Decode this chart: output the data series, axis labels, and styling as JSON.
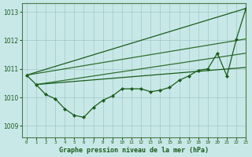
{
  "title": "Graphe pression niveau de la mer (hPa)",
  "background_color": "#c8e8e8",
  "grid_color": "#a0c8c8",
  "line_color_dark": "#1a5c1a",
  "line_color_med": "#2e6e2e",
  "xlim": [
    -0.5,
    23
  ],
  "ylim": [
    1008.6,
    1013.3
  ],
  "yticks": [
    1009,
    1010,
    1011,
    1012,
    1013
  ],
  "xtick_labels": [
    "0",
    "1",
    "2",
    "3",
    "4",
    "5",
    "6",
    "7",
    "8",
    "9",
    "10",
    "11",
    "12",
    "13",
    "14",
    "15",
    "16",
    "17",
    "18",
    "19",
    "20",
    "21",
    "22",
    "23"
  ],
  "fan_lines": [
    {
      "x": [
        0,
        23
      ],
      "y": [
        1010.78,
        1013.12
      ]
    },
    {
      "x": [
        0,
        23
      ],
      "y": [
        1010.78,
        1012.05
      ]
    },
    {
      "x": [
        1,
        23
      ],
      "y": [
        1010.45,
        1011.55
      ]
    },
    {
      "x": [
        1,
        23
      ],
      "y": [
        1010.45,
        1011.05
      ]
    }
  ],
  "hourly": [
    1010.78,
    1010.45,
    1010.1,
    1009.95,
    1009.6,
    1009.37,
    1009.3,
    1009.65,
    1009.9,
    1010.05,
    1010.3,
    1010.3,
    1010.3,
    1010.2,
    1010.25,
    1010.35,
    1010.6,
    1010.75,
    1010.95,
    1011.0,
    1011.55,
    1010.75,
    1012.05,
    1013.12
  ]
}
